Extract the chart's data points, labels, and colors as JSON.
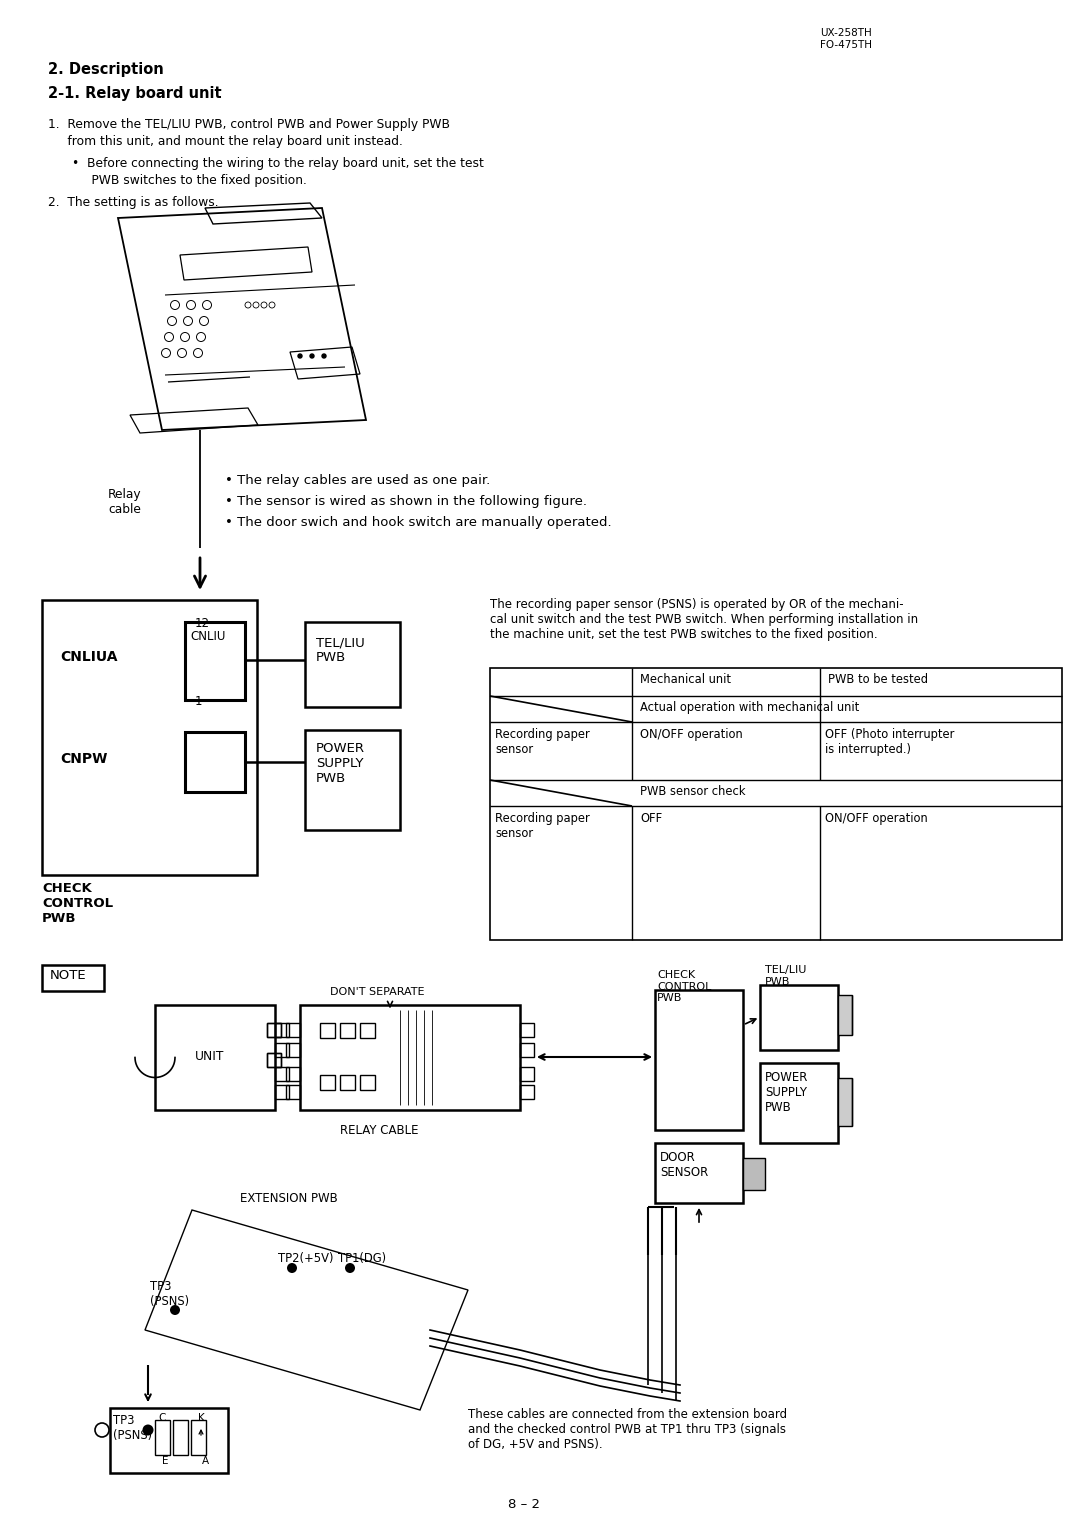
{
  "bg_color": "#ffffff",
  "text_color": "#000000",
  "page_title_right": "UX-258TH\nFO-475TH",
  "section_title": "2. Description",
  "subsection_title": "2-1. Relay board unit",
  "para1a": "1.  Remove the TEL/LIU PWB, control PWB and Power Supply PWB",
  "para1b": "     from this unit, and mount the relay board unit instead.",
  "bullet1a": "•  Before connecting the wiring to the relay board unit, set the test",
  "bullet1b": "     PWB switches to the fixed position.",
  "para2": "2.  The setting is as follows.",
  "relay_label": "Relay\ncable",
  "bullet_r1": "• The relay cables are used as one pair.",
  "bullet_r2": "• The sensor is wired as shown in the following figure.",
  "bullet_r3": "• The door swich and hook switch are manually operated.",
  "psns_note": "The recording paper sensor (PSNS) is operated by OR of the mechani-\ncal unit switch and the test PWB switch. When performing installation in\nthe machine unit, set the test PWB switches to the fixed position.",
  "t_mech": "Mechanical unit",
  "t_pwb": "PWB to be tested",
  "t_actual": "Actual operation with mechanical unit",
  "t_r2c0": "Recording paper\nsensor",
  "t_r2c1": "ON/OFF operation",
  "t_r2c2": "OFF (Photo interrupter\nis interrupted.)",
  "t_pwb_check": "PWB sensor check",
  "t_r4c0": "Recording paper\nsensor",
  "t_r4c1": "OFF",
  "t_r4c2": "ON/OFF operation",
  "l_cnliua": "CNLIUA",
  "l_cnliu": "CNLIU",
  "l_telpwb": "TEL/LIU\nPWB",
  "l_cnpw": "CNPW",
  "l_powerpwb": "POWER\nSUPPLY\nPWB",
  "l_check": "CHECK\nCONTROL\nPWB",
  "l_12": "12",
  "l_1": "1",
  "note_box": "NOTE",
  "dont_sep": "DON'T SEPARATE",
  "relay_cable": "RELAY CABLE",
  "unit_txt": "UNIT",
  "ext_pwb": "EXTENSION PWB",
  "tp2_label": "TP2(+5V)",
  "tp1_label": "TP1(DG)",
  "tp3_label": "TP3\n(PSNS)",
  "tp3b_label": "TP3\n(PSNS)",
  "check2": "CHECK\nCONTROL\nPWB",
  "door_sensor": "DOOR\nSENSOR",
  "tel2": "TEL/LIU\nPWB",
  "power2": "POWER\nSUPPLY\nPWB",
  "bottom_note": "These cables are connected from the extension board\nand the checked control PWB at TP1 thru TP3 (signals\nof DG, +5V and PSNS).",
  "c_label": "C",
  "k_label": "K",
  "e_label": "E",
  "a_label": "A",
  "page_num": "8 – 2"
}
